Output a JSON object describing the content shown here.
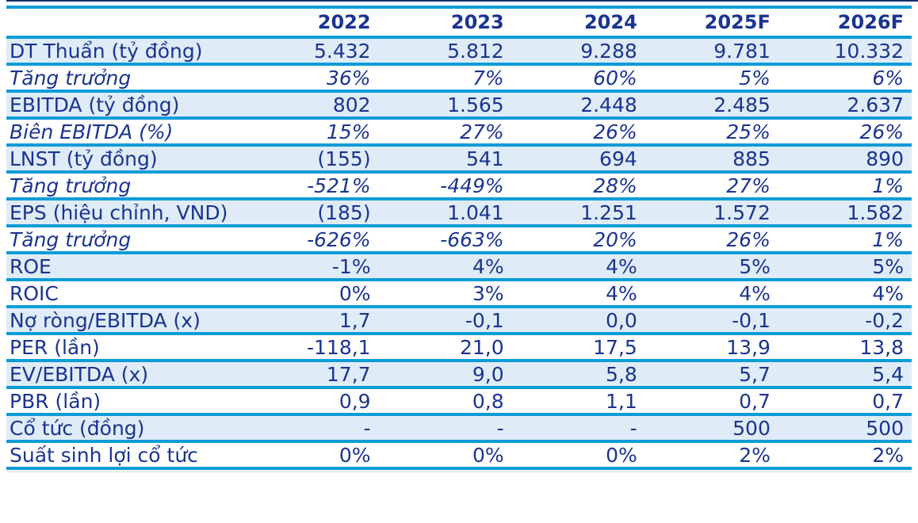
{
  "colors": {
    "text_navy": "#1a3490",
    "separator_cyan": "#0a9cd8",
    "row_stripe_blue": "#dfecf7",
    "top_hairline_navy": "#17306e"
  },
  "chart_data": {
    "type": "table",
    "title": "",
    "columns": [
      "",
      "2022",
      "2023",
      "2024",
      "2025F",
      "2026F"
    ],
    "rows": [
      {
        "label": "DT Thuẩn (tỷ đồng)",
        "italic": false,
        "values": [
          "5.432",
          "5.812",
          "9.288",
          "9.781",
          "10.332"
        ]
      },
      {
        "label": "Tăng trưởng",
        "italic": true,
        "values": [
          "36%",
          "7%",
          "60%",
          "5%",
          "6%"
        ]
      },
      {
        "label": "EBITDA (tỷ đồng)",
        "italic": false,
        "values": [
          "802",
          "1.565",
          "2.448",
          "2.485",
          "2.637"
        ]
      },
      {
        "label": "Biên EBITDA (%)",
        "italic": true,
        "values": [
          "15%",
          "27%",
          "26%",
          "25%",
          "26%"
        ]
      },
      {
        "label": "LNST (tỷ đồng)",
        "italic": false,
        "values": [
          "(155)",
          "541",
          "694",
          "885",
          "890"
        ]
      },
      {
        "label": "Tăng trưởng",
        "italic": true,
        "values": [
          "-521%",
          "-449%",
          "28%",
          "27%",
          "1%"
        ]
      },
      {
        "label": "EPS (hiệu chỉnh, VND)",
        "italic": false,
        "values": [
          "(185)",
          "1.041",
          "1.251",
          "1.572",
          "1.582"
        ]
      },
      {
        "label": "Tăng trưởng",
        "italic": true,
        "values": [
          "-626%",
          "-663%",
          "20%",
          "26%",
          "1%"
        ]
      },
      {
        "label": "ROE",
        "italic": false,
        "values": [
          "-1%",
          "4%",
          "4%",
          "5%",
          "5%"
        ]
      },
      {
        "label": "ROIC",
        "italic": false,
        "values": [
          "0%",
          "3%",
          "4%",
          "4%",
          "4%"
        ]
      },
      {
        "label": "Nợ ròng/EBITDA (x)",
        "italic": false,
        "values": [
          "1,7",
          "-0,1",
          "0,0",
          "-0,1",
          "-0,2"
        ]
      },
      {
        "label": "PER (lần)",
        "italic": false,
        "values": [
          "-118,1",
          "21,0",
          "17,5",
          "13,9",
          "13,8"
        ]
      },
      {
        "label": "EV/EBITDA (x)",
        "italic": false,
        "values": [
          "17,7",
          "9,0",
          "5,8",
          "5,7",
          "5,4"
        ]
      },
      {
        "label": "PBR (lần)",
        "italic": false,
        "values": [
          "0,9",
          "0,8",
          "1,1",
          "0,7",
          "0,7"
        ]
      },
      {
        "label": "Cổ tức (đồng)",
        "italic": false,
        "values": [
          "-",
          "-",
          "-",
          "500",
          "500"
        ]
      },
      {
        "label": "Suất sinh lợi cổ tức",
        "italic": false,
        "values": [
          "0%",
          "0%",
          "0%",
          "2%",
          "2%"
        ]
      }
    ]
  }
}
